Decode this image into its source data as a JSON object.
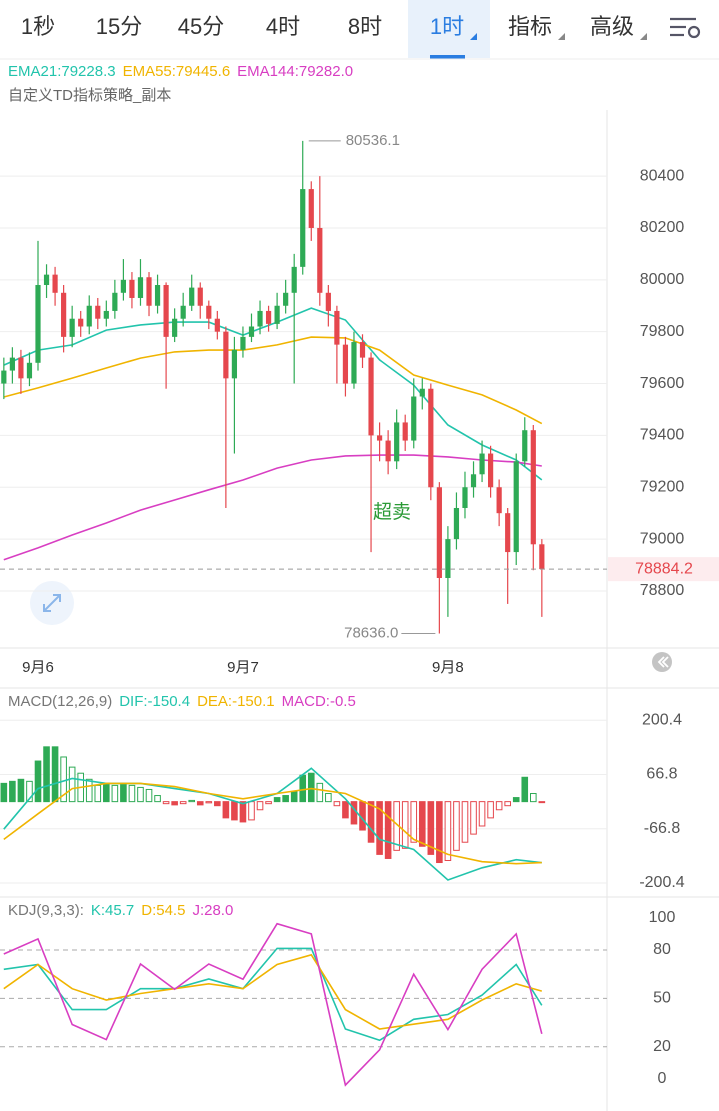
{
  "tabs": [
    "1秒",
    "15分",
    "45分",
    "4时",
    "8时",
    "1时",
    "指标",
    "高级"
  ],
  "selected_tab": "1时",
  "chart_data": [
    {
      "type": "candlestick",
      "indicator": "自定义TD指标策略_副本",
      "annotation": "超卖",
      "up_color": "#2eaa55",
      "down_color": "#e5474d",
      "x": [
        -4,
        -3,
        -2,
        -1,
        0,
        1,
        2,
        3,
        4,
        5,
        6,
        7,
        8,
        9,
        10,
        11,
        12,
        13,
        14,
        15,
        16,
        17,
        18,
        19,
        20,
        21,
        22,
        23,
        24,
        25,
        26,
        27,
        28,
        29,
        30,
        31,
        32,
        33,
        34,
        35,
        36,
        37,
        38,
        39,
        40,
        41,
        42,
        43,
        44,
        45,
        46,
        47,
        48,
        49,
        50,
        51,
        52,
        53,
        54,
        55,
        56,
        57,
        58,
        59
      ],
      "open": [
        79600,
        79650,
        79700,
        79620,
        79680,
        79980,
        80020,
        79950,
        79780,
        79850,
        79820,
        79900,
        79850,
        79880,
        79950,
        80000,
        79930,
        80010,
        79900,
        79980,
        79780,
        79850,
        79900,
        79970,
        79900,
        79850,
        79800,
        79620,
        79730,
        79780,
        79820,
        79880,
        79830,
        79900,
        79950,
        80050,
        80350,
        80200,
        79950,
        79880,
        79750,
        79600,
        79760,
        79700,
        79400,
        79380,
        79300,
        79450,
        79380,
        79550,
        79580,
        79200,
        78850,
        79000,
        79120,
        79200,
        79250,
        79330,
        79200,
        79100,
        78950,
        79300,
        79420,
        78980
      ],
      "high": [
        79700,
        79740,
        79730,
        79720,
        80150,
        80060,
        80050,
        79980,
        79900,
        79880,
        79940,
        79930,
        79920,
        80000,
        80080,
        80030,
        80080,
        80030,
        80020,
        79990,
        79890,
        79950,
        80020,
        79990,
        79920,
        79880,
        79820,
        79780,
        79820,
        79870,
        79920,
        79900,
        79950,
        80000,
        80100,
        80536.1,
        80380,
        80400,
        79980,
        79900,
        79780,
        79800,
        79790,
        79720,
        79450,
        79420,
        79500,
        79480,
        79620,
        79620,
        79600,
        79220,
        79050,
        79180,
        79260,
        79300,
        79380,
        79360,
        79230,
        79120,
        79330,
        79470,
        79440,
        79000
      ],
      "low": [
        79540,
        79600,
        79560,
        79590,
        79650,
        79930,
        79900,
        79720,
        79740,
        79780,
        79790,
        79810,
        79820,
        79850,
        79920,
        79890,
        79900,
        79860,
        79870,
        79580,
        79760,
        79820,
        79880,
        79850,
        79810,
        79770,
        79120,
        79330,
        79700,
        79760,
        79790,
        79800,
        79810,
        79870,
        79600,
        80020,
        80150,
        79900,
        79820,
        79600,
        79550,
        79580,
        79660,
        78950,
        79300,
        79250,
        79270,
        79340,
        79350,
        79500,
        79150,
        78636,
        78700,
        78960,
        79080,
        79160,
        79220,
        79160,
        79050,
        78750,
        78900,
        79280,
        78880,
        78700
      ],
      "close": [
        79650,
        79700,
        79620,
        79680,
        79980,
        80020,
        79950,
        79780,
        79850,
        79820,
        79900,
        79850,
        79880,
        79950,
        80000,
        79930,
        80010,
        79900,
        79980,
        79780,
        79850,
        79900,
        79970,
        79900,
        79850,
        79800,
        79620,
        79730,
        79780,
        79820,
        79880,
        79830,
        79900,
        79950,
        80050,
        80350,
        80200,
        79950,
        79880,
        79750,
        79600,
        79760,
        79700,
        79400,
        79380,
        79300,
        79450,
        79380,
        79550,
        79580,
        79200,
        78850,
        79000,
        79120,
        79200,
        79250,
        79330,
        79200,
        79100,
        78950,
        79300,
        79420,
        78980,
        78884.2
      ],
      "series": [
        {
          "name": "EMA21:79228.3",
          "color": "#22c4ac",
          "x": [
            -4,
            0,
            4,
            8,
            12,
            16,
            20,
            24,
            28,
            32,
            36,
            40,
            44,
            48,
            52,
            56,
            59
          ],
          "values": [
            79671,
            79729,
            79749,
            79806,
            79826,
            79837,
            79837,
            79787,
            79837,
            79891,
            79845,
            79691,
            79594,
            79440,
            79363,
            79305,
            79228.3
          ]
        },
        {
          "name": "EMA55:79445.6",
          "color": "#f0b400",
          "x": [
            -4,
            0,
            4,
            8,
            12,
            16,
            20,
            24,
            28,
            32,
            36,
            40,
            44,
            48,
            52,
            56,
            59
          ],
          "values": [
            79548,
            79583,
            79621,
            79660,
            79698,
            79722,
            79729,
            79729,
            79749,
            79779,
            79776,
            79729,
            79633,
            79594,
            79556,
            79498,
            79445.6
          ]
        },
        {
          "name": "EMA144:79282.0",
          "color": "#d83ec2",
          "x": [
            -4,
            0,
            4,
            8,
            12,
            16,
            20,
            24,
            28,
            32,
            36,
            40,
            44,
            48,
            52,
            56,
            59
          ],
          "values": [
            78920,
            78966,
            79016,
            79062,
            79112,
            79151,
            79190,
            79228,
            79274,
            79305,
            79321,
            79324,
            79324,
            79317,
            79305,
            79297,
            79282
          ]
        }
      ],
      "xlim": [
        -4.45,
        66.63
      ],
      "xticks": [
        {
          "value": 0,
          "label": "9月6"
        },
        {
          "value": 24,
          "label": "9月7"
        },
        {
          "value": 48,
          "label": "9月8"
        }
      ],
      "ylim": [
        78580,
        80655
      ],
      "yticks": [
        78800,
        79000,
        79200,
        79400,
        79600,
        79800,
        80000,
        80200,
        80400
      ],
      "grid": true,
      "last_price": 78884.2,
      "extremes": {
        "high": 80536.1,
        "low": {
          "value": 78636,
          "label": "78636.0"
        }
      }
    },
    {
      "type": "macd",
      "legend_title": "MACD(12,26,9)",
      "histogram_name": "MACD:-0.5",
      "histogram_name_color": "#d83ec2",
      "up_color": "#2eaa55",
      "down_color": "#e5474d",
      "histogram": [
        45,
        50,
        55,
        50,
        100,
        135,
        135,
        110,
        85,
        70,
        55,
        40,
        45,
        40,
        45,
        40,
        35,
        30,
        15,
        -5,
        -8,
        -5,
        3,
        -8,
        -3,
        -10,
        -40,
        -45,
        -50,
        -45,
        -20,
        -5,
        10,
        15,
        25,
        65,
        70,
        45,
        20,
        -10,
        -40,
        -55,
        -70,
        -100,
        -130,
        -140,
        -120,
        -115,
        -100,
        -110,
        -130,
        -150,
        -145,
        -120,
        -100,
        -80,
        -60,
        -40,
        -20,
        -10,
        10,
        60,
        20,
        -0.5
      ],
      "series": [
        {
          "name": "DIF:-150.4",
          "color": "#22c4ac",
          "x": [
            -4,
            0,
            4,
            8,
            12,
            16,
            20,
            24,
            28,
            32,
            36,
            40,
            44,
            48,
            52,
            56,
            59
          ],
          "values": [
            -68,
            32,
            57,
            45,
            45,
            32,
            20,
            -5,
            20,
            82,
            7,
            -93,
            -118,
            -193,
            -163,
            -143,
            -150.4
          ]
        },
        {
          "name": "DEA:-150.1",
          "color": "#f0b400",
          "x": [
            -4,
            0,
            4,
            8,
            12,
            16,
            20,
            24,
            28,
            32,
            36,
            40,
            44,
            48,
            52,
            56,
            59
          ],
          "values": [
            -93,
            -30,
            32,
            45,
            45,
            37,
            20,
            7,
            20,
            32,
            20,
            -18,
            -93,
            -130,
            -148,
            -153,
            -150.1
          ]
        }
      ],
      "ylim": [
        -230,
        275
      ],
      "yticks": [
        -200.4,
        -66.8,
        66.8,
        200.4
      ],
      "grid": true
    },
    {
      "type": "line",
      "legend_title": "KDJ(9,3,3):",
      "series": [
        {
          "name": "K:45.7",
          "color": "#22c4ac",
          "x": [
            -4,
            0,
            4,
            8,
            12,
            16,
            20,
            24,
            28,
            32,
            36,
            40,
            44,
            48,
            52,
            56,
            59
          ],
          "values": [
            68,
            71,
            43,
            43,
            56,
            56,
            62,
            56,
            81,
            81,
            31,
            24,
            37,
            40,
            52,
            71,
            45.7
          ]
        },
        {
          "name": "D:54.5",
          "color": "#f0b400",
          "x": [
            -4,
            0,
            4,
            8,
            12,
            16,
            20,
            24,
            28,
            32,
            36,
            40,
            44,
            48,
            52,
            56,
            59
          ],
          "values": [
            56,
            71,
            56,
            49,
            53,
            56,
            59,
            56,
            71,
            77,
            43,
            31,
            34,
            37,
            49,
            59,
            54.5
          ]
        },
        {
          "name": "J:28.0",
          "color": "#d83ec2",
          "x": [
            -4,
            0,
            4,
            8,
            12,
            16,
            20,
            24,
            28,
            32,
            36,
            40,
            44,
            48,
            52,
            56,
            59
          ],
          "values": [
            77.5,
            86.9,
            33.8,
            24.4,
            71.3,
            55.6,
            71.3,
            61.9,
            96.3,
            90,
            -3.8,
            18.1,
            65,
            30.6,
            68.1,
            90,
            28
          ]
        }
      ],
      "ylim": [
        -18,
        111
      ],
      "yticks": [
        0,
        20,
        50,
        80,
        100
      ],
      "grid": "dashed"
    }
  ]
}
